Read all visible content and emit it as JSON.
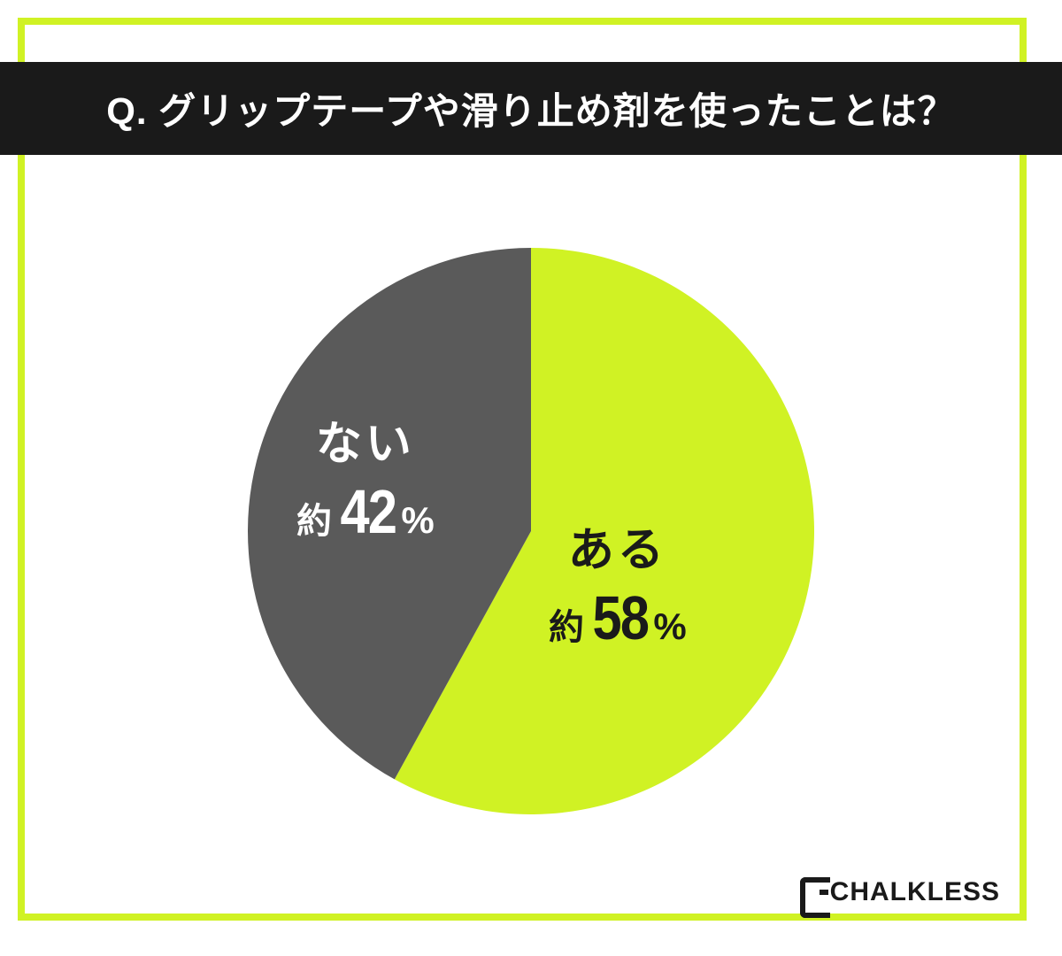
{
  "accent_color": "#d0f224",
  "title": "Q. グリップテープや滑り止め剤を使ったことは？",
  "chart": {
    "type": "pie",
    "radius": 320,
    "background_color": "#ffffff",
    "slices": [
      {
        "key": "aru",
        "label": "ある",
        "approx_prefix": "約",
        "value": 58,
        "percent_suffix": "%",
        "color": "#d0f224",
        "label_color": "#1a1a1a"
      },
      {
        "key": "nai",
        "label": "ない",
        "approx_prefix": "約",
        "value": 42,
        "percent_suffix": "%",
        "color": "#5a5a5a",
        "label_color": "#ffffff"
      }
    ]
  },
  "brand": {
    "text": "CHALKLESS"
  }
}
